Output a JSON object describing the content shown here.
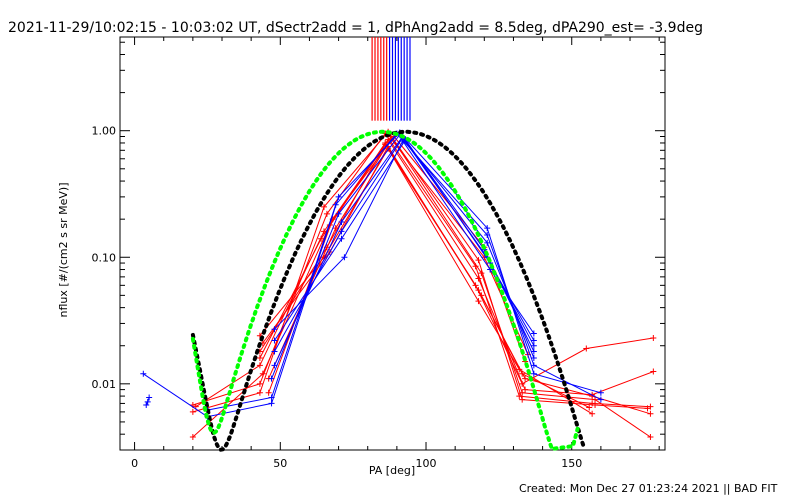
{
  "window": {
    "title": "2021-11-29/10:02:15 - 10:03:02 UT, dSectr2add = 1, dPhAng2add = 8.5deg, dPA290_est= -3.9deg",
    "footer": "Created: Mon Dec 27 01:23:24 2021 || BAD FIT"
  },
  "chart_data": {
    "type": "line",
    "title": "2021-11-29/10:02:15 - 10:03:02 UT, dSectr2add = 1, dPhAng2add = 8.5deg, dPA290_est= -3.9deg",
    "xlabel": "PA [deg]",
    "ylabel": "nflux [#/(cm2 s sr MeV)]",
    "xlim": [
      -5,
      182
    ],
    "ylim": [
      0.003,
      5.5
    ],
    "yscale": "log",
    "x_ticks": [
      0,
      50,
      100,
      150
    ],
    "x_tick_labels": [
      "0",
      "50",
      "100",
      "150"
    ],
    "y_ticks": [
      0.01,
      0.1,
      1.0
    ],
    "y_tick_labels": [
      "0.01",
      "0.10",
      "1.00"
    ],
    "grid": false,
    "colors": {
      "red": "#ff0000",
      "blue": "#0000ff",
      "black": "#000000",
      "green": "#00ff00"
    },
    "vertical_markers": {
      "red_x": [
        81.5,
        82.5,
        83.5,
        84.5,
        85.5,
        86.5
      ],
      "blue_x": [
        87.5,
        88.5,
        89.5,
        90.5,
        91.5,
        92.5,
        93.5,
        94.5
      ],
      "y_range": [
        1.2,
        5.5
      ]
    },
    "series": [
      {
        "color": "red",
        "marker": "plus",
        "lines": [
          {
            "points": [
              [
                20,
                0.006
              ],
              [
                43,
                0.0085
              ],
              [
                65,
                0.25
              ],
              [
                87,
                0.98
              ],
              [
                118,
                0.095
              ],
              [
                133,
                0.0075
              ],
              [
                158,
                0.0068
              ],
              [
                176,
                0.0064
              ]
            ]
          },
          {
            "points": [
              [
                20,
                0.0068
              ],
              [
                43,
                0.01
              ],
              [
                66,
                0.22
              ],
              [
                86,
                0.95
              ],
              [
                117,
                0.085
              ],
              [
                132,
                0.008
              ],
              [
                157,
                0.007
              ],
              [
                177,
                0.0066
              ]
            ]
          },
          {
            "points": [
              [
                20,
                0.0038
              ],
              [
                44,
                0.012
              ],
              [
                67,
                0.18
              ],
              [
                88,
                0.9
              ],
              [
                119,
                0.075
              ],
              [
                133,
                0.0085
              ],
              [
                158,
                0.0075
              ],
              [
                177,
                0.0038
              ]
            ]
          },
          {
            "points": [
              [
                21,
                0.0066
              ],
              [
                43,
                0.014
              ],
              [
                65,
                0.16
              ],
              [
                87,
                0.85
              ],
              [
                118,
                0.068
              ],
              [
                134,
                0.009
              ],
              [
                157,
                0.0082
              ],
              [
                178,
                0.0125
              ]
            ]
          },
          {
            "points": [
              [
                43,
                0.016
              ],
              [
                64,
                0.14
              ],
              [
                86,
                0.8
              ],
              [
                117,
                0.06
              ],
              [
                133,
                0.01
              ],
              [
                155,
                0.019
              ],
              [
                178,
                0.023
              ]
            ]
          },
          {
            "points": [
              [
                43,
                0.018
              ],
              [
                66,
                0.12
              ],
              [
                86,
                0.78
              ],
              [
                118,
                0.055
              ],
              [
                134,
                0.011
              ],
              [
                157,
                0.008
              ],
              [
                177,
                0.0058
              ]
            ]
          },
          {
            "points": [
              [
                44,
                0.021
              ],
              [
                67,
                0.11
              ],
              [
                87,
                0.75
              ],
              [
                119,
                0.05
              ],
              [
                133,
                0.012
              ],
              [
                156,
                0.0065
              ]
            ]
          },
          {
            "points": [
              [
                43,
                0.024
              ],
              [
                65,
                0.1
              ],
              [
                87,
                0.72
              ],
              [
                118,
                0.045
              ],
              [
                132,
                0.013
              ],
              [
                157,
                0.0058
              ]
            ]
          },
          {
            "points": [
              [
                46,
                0.0085
              ],
              [
                68,
                0.2
              ],
              [
                89,
                0.9
              ],
              [
                120,
                0.12
              ],
              [
                134,
                0.015
              ]
            ]
          },
          {
            "points": [
              [
                46,
                0.011
              ],
              [
                69,
                0.17
              ],
              [
                88,
                0.86
              ],
              [
                120,
                0.1
              ],
              [
                135,
                0.017
              ]
            ]
          }
        ]
      },
      {
        "color": "blue",
        "marker": "plus",
        "lines": [
          {
            "points": [
              [
                4,
                0.0068
              ],
              [
                4.5,
                0.0072
              ],
              [
                5,
                0.0078
              ]
            ]
          },
          {
            "points": [
              [
                3,
                0.012
              ],
              [
                25,
                0.0055
              ],
              [
                47,
                0.007
              ],
              [
                70,
                0.3
              ],
              [
                91,
                0.97
              ],
              [
                121,
                0.17
              ],
              [
                137,
                0.012
              ],
              [
                160,
                0.0085
              ]
            ]
          },
          {
            "points": [
              [
                25,
                0.0062
              ],
              [
                47,
                0.0078
              ],
              [
                69,
                0.26
              ],
              [
                90,
                0.95
              ],
              [
                121,
                0.15
              ],
              [
                137,
                0.014
              ],
              [
                160,
                0.0075
              ]
            ]
          },
          {
            "points": [
              [
                47,
                0.011
              ],
              [
                70,
                0.22
              ],
              [
                91,
                0.93
              ],
              [
                121,
                0.13
              ],
              [
                137,
                0.016
              ]
            ]
          },
          {
            "points": [
              [
                48,
                0.014
              ],
              [
                71,
                0.19
              ],
              [
                92,
                0.9
              ],
              [
                120,
                0.115
              ],
              [
                137,
                0.018
              ]
            ]
          },
          {
            "points": [
              [
                48,
                0.018
              ],
              [
                71,
                0.16
              ],
              [
                92,
                0.88
              ],
              [
                121,
                0.1
              ],
              [
                137,
                0.02
              ]
            ]
          },
          {
            "points": [
              [
                48,
                0.022
              ],
              [
                71,
                0.14
              ],
              [
                93,
                0.85
              ],
              [
                122,
                0.09
              ],
              [
                137,
                0.022
              ]
            ]
          },
          {
            "points": [
              [
                48,
                0.027
              ],
              [
                72,
                0.1
              ],
              [
                92,
                0.83
              ],
              [
                122,
                0.08
              ],
              [
                137,
                0.025
              ]
            ]
          }
        ]
      }
    ],
    "fit_curves": [
      {
        "color": "black",
        "style": "thick-dashed",
        "center_x": 93,
        "peak": 1.0,
        "curve_x_range": [
          20,
          160
        ]
      },
      {
        "color": "green",
        "style": "thick-dashed",
        "center_x": 85,
        "peak": 1.0,
        "curve_x_range": [
          20,
          152
        ]
      }
    ]
  }
}
